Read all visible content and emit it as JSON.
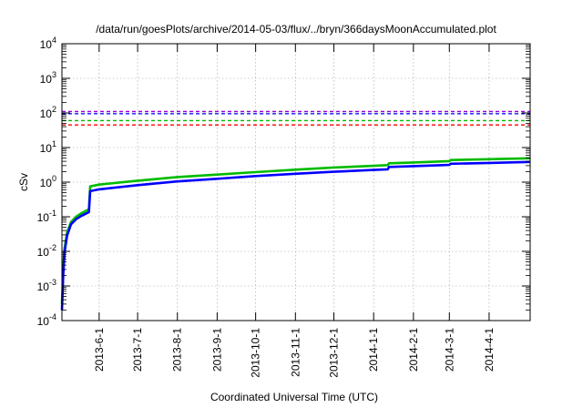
{
  "chart_data": {
    "type": "line",
    "title": "/data/run/goesPlots/archive/2014-05-03/flux/../bryn/366daysMoonAccumulated.plot",
    "xlabel": "Coordinated Universal Time (UTC)",
    "ylabel": "cSv",
    "yscale": "log",
    "ylim": [
      0.0001,
      10000
    ],
    "xlim": [
      "2013-05-03",
      "2014-05-03"
    ],
    "y_ticks": [
      {
        "value": 0.0001,
        "base": "10",
        "exp": "-4"
      },
      {
        "value": 0.001,
        "base": "10",
        "exp": "-3"
      },
      {
        "value": 0.01,
        "base": "10",
        "exp": "-2"
      },
      {
        "value": 0.1,
        "base": "10",
        "exp": "-1"
      },
      {
        "value": 1,
        "base": "10",
        "exp": "0"
      },
      {
        "value": 10,
        "base": "10",
        "exp": "1"
      },
      {
        "value": 100,
        "base": "10",
        "exp": "2"
      },
      {
        "value": 1000,
        "base": "10",
        "exp": "3"
      },
      {
        "value": 10000,
        "base": "10",
        "exp": "4"
      }
    ],
    "x_ticks": [
      {
        "label": "2013-6-1",
        "date": "2013-06-01"
      },
      {
        "label": "2013-7-1",
        "date": "2013-07-01"
      },
      {
        "label": "2013-8-1",
        "date": "2013-08-01"
      },
      {
        "label": "2013-9-1",
        "date": "2013-09-01"
      },
      {
        "label": "2013-10-1",
        "date": "2013-10-01"
      },
      {
        "label": "2013-11-1",
        "date": "2013-11-01"
      },
      {
        "label": "2013-12-1",
        "date": "2013-12-01"
      },
      {
        "label": "2014-1-1",
        "date": "2014-01-01"
      },
      {
        "label": "2014-2-1",
        "date": "2014-02-01"
      },
      {
        "label": "2014-3-1",
        "date": "2014-03-01"
      },
      {
        "label": "2014-4-1",
        "date": "2014-04-01"
      }
    ],
    "grid": true,
    "reference_lines": [
      {
        "y": 110,
        "color": "#9400d3"
      },
      {
        "y": 95,
        "color": "#0000ff"
      },
      {
        "y": 60,
        "color": "#00bb00"
      },
      {
        "y": 45,
        "color": "#ff0000"
      }
    ],
    "series": [
      {
        "color": "#00bb00",
        "x": [
          "2013-05-03",
          "2013-05-04",
          "2013-05-05",
          "2013-05-07",
          "2013-05-10",
          "2013-05-14",
          "2013-05-18",
          "2013-05-22",
          "2013-05-24",
          "2013-05-25",
          "2013-06-01",
          "2013-07-01",
          "2013-08-01",
          "2013-09-01",
          "2013-10-01",
          "2013-11-01",
          "2013-12-01",
          "2014-01-01",
          "2014-01-12",
          "2014-01-13",
          "2014-02-01",
          "2014-03-01",
          "2014-03-02",
          "2014-04-01",
          "2014-05-03"
        ],
        "y": [
          0.0003,
          0.003,
          0.012,
          0.035,
          0.07,
          0.1,
          0.125,
          0.15,
          0.165,
          0.75,
          0.85,
          1.1,
          1.4,
          1.65,
          1.95,
          2.3,
          2.65,
          2.95,
          3.1,
          3.5,
          3.7,
          4.05,
          4.35,
          4.6,
          4.9
        ]
      },
      {
        "color": "#0000ff",
        "x": [
          "2013-05-03",
          "2013-05-04",
          "2013-05-05",
          "2013-05-07",
          "2013-05-10",
          "2013-05-14",
          "2013-05-18",
          "2013-05-22",
          "2013-05-24",
          "2013-05-25",
          "2013-06-01",
          "2013-07-01",
          "2013-08-01",
          "2013-09-01",
          "2013-10-01",
          "2013-11-01",
          "2013-12-01",
          "2014-01-01",
          "2014-01-12",
          "2014-01-13",
          "2014-02-01",
          "2014-03-01",
          "2014-03-02",
          "2014-04-01",
          "2014-05-03"
        ],
        "y": [
          0.0002,
          0.002,
          0.009,
          0.028,
          0.06,
          0.085,
          0.105,
          0.125,
          0.135,
          0.55,
          0.62,
          0.82,
          1.05,
          1.25,
          1.5,
          1.75,
          2.0,
          2.25,
          2.35,
          2.75,
          2.9,
          3.15,
          3.4,
          3.6,
          3.85
        ]
      }
    ]
  }
}
